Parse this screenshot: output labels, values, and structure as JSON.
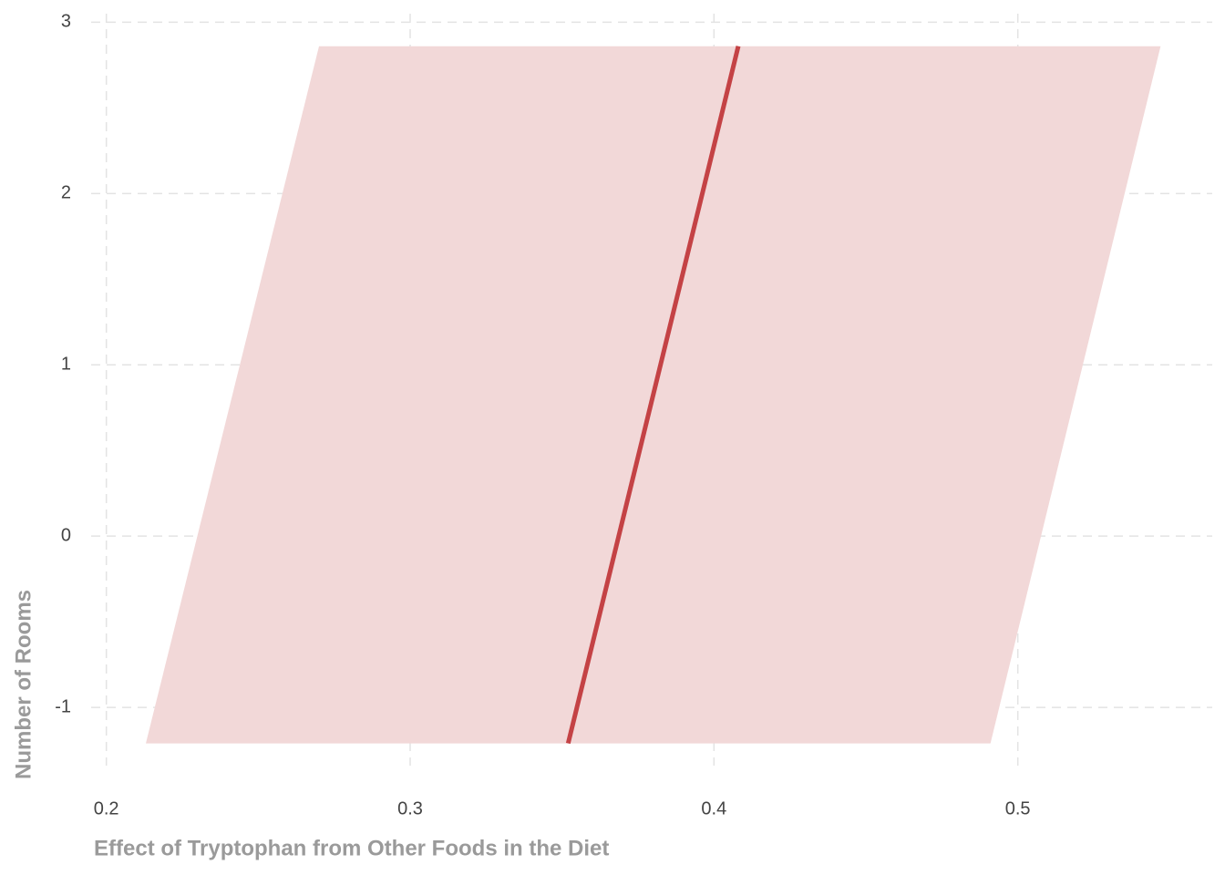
{
  "chart_data": {
    "type": "line",
    "orientation": "horizontal",
    "x_label": "Effect of Tryptophan from Other Foods in the Diet",
    "y_label": "Number of Rooms",
    "y": [
      -1.21,
      2.86
    ],
    "series": [
      {
        "color": "#c44245",
        "band_color": "#f2d8d8",
        "values": [
          0.352,
          0.408
        ],
        "lower": [
          0.213,
          0.27
        ],
        "upper": [
          0.491,
          0.547
        ]
      }
    ],
    "xlim": [
      0.195,
      0.564
    ],
    "xticks": [
      0.2,
      0.3,
      0.4,
      0.5
    ],
    "ylim": [
      -1.34,
      3.05
    ],
    "yticks": [
      -1,
      0,
      1,
      2,
      3
    ],
    "grid": true
  }
}
